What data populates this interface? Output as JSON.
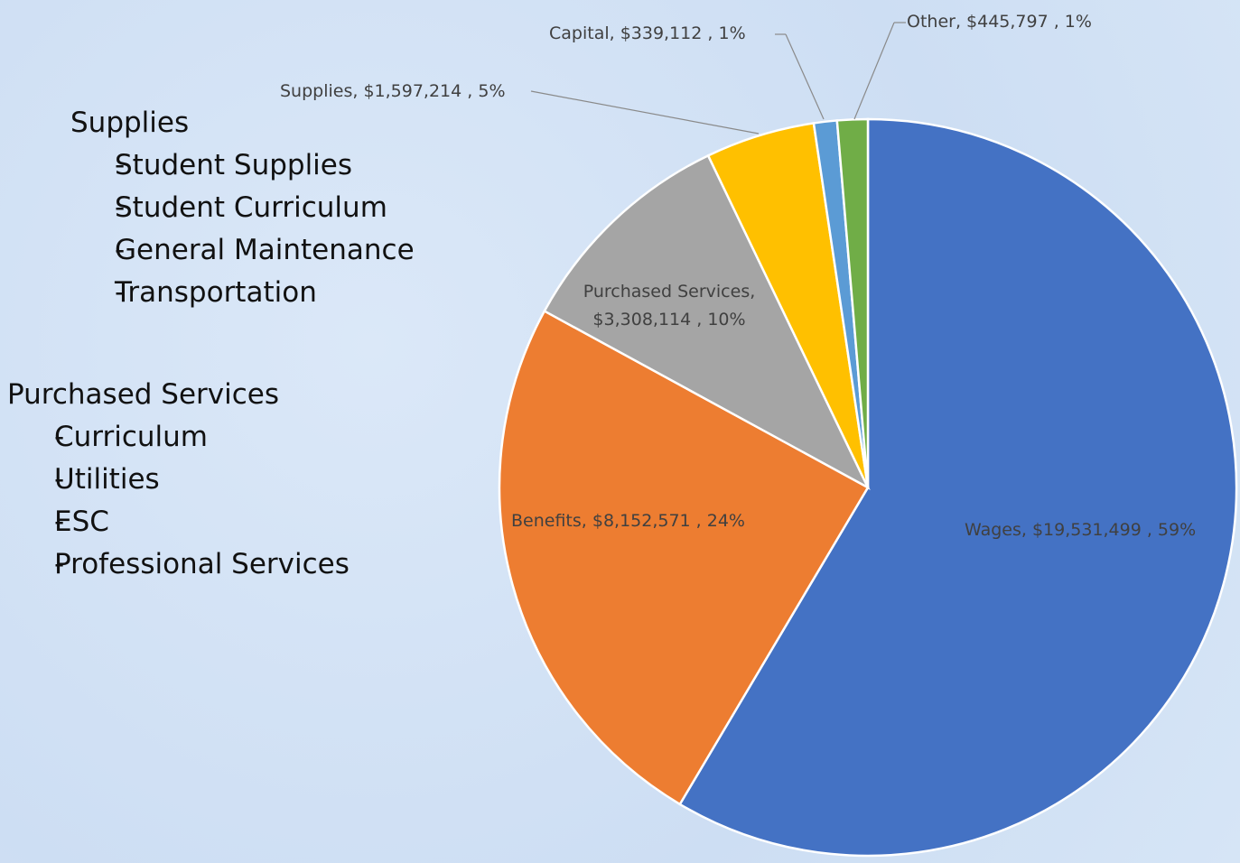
{
  "chart_data": {
    "type": "pie",
    "categories": [
      "Wages",
      "Benefits",
      "Purchased Services",
      "Supplies",
      "Capital",
      "Other"
    ],
    "values": [
      19531499,
      8152571,
      3308114,
      1597214,
      339112,
      445797
    ],
    "value_labels": [
      "Wages,  $19,531,499 , 59%",
      "Benefits,  $8,152,571 , 24%",
      "Purchased Services,  $3,308,114 , 10%",
      "Supplies,  $1,597,214 , 5%",
      "Capital,  $339,112 , 1%",
      "Other,  $445,797 , 1%"
    ],
    "colors": [
      "#4472c4",
      "#ed7d31",
      "#a5a5a5",
      "#ffc000",
      "#5b9bd5",
      "#70ad47"
    ]
  },
  "notes": [
    {
      "heading": "Supplies",
      "items": [
        "Student Supplies",
        "Student Curriculum",
        "General Maintenance",
        "Transportation"
      ]
    },
    {
      "heading": "Purchased Services",
      "items": [
        "Curriculum",
        "Utilities",
        "ESC",
        "Professional Services"
      ]
    }
  ]
}
